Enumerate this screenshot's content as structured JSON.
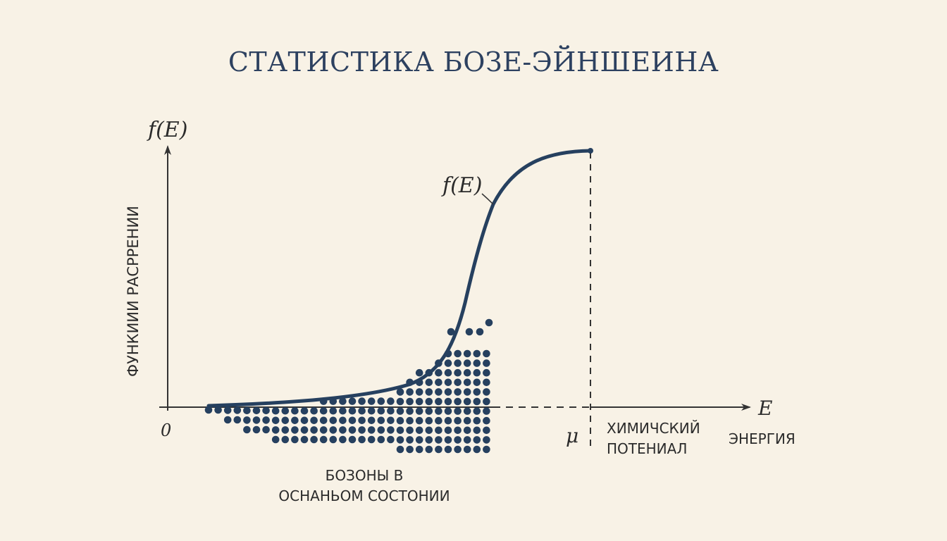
{
  "title": "СТАТИСТИКА БОЗЕ-ЭЙНШЕИНА",
  "y_axis": {
    "symbol": "f(E)",
    "label": "ФУНКИИИ РАСРРЕНИИ"
  },
  "x_axis": {
    "symbol": "E",
    "label": "ЭНЕРГИЯ",
    "origin": "0"
  },
  "curve_label": "f(E)",
  "mu": {
    "symbol": "μ",
    "label_line1": "ХИМИЧСКИЙ",
    "label_line2": "ПОТЕНИАЛ"
  },
  "bosons": {
    "label_line1": "БОЗОНЫ В",
    "label_line2": "ОСНАНЬОМ СОСТОНИИ"
  },
  "colors": {
    "background": "#f8f2e6",
    "curve": "#26405f",
    "axis": "#333333",
    "dots": "#26405f"
  }
}
